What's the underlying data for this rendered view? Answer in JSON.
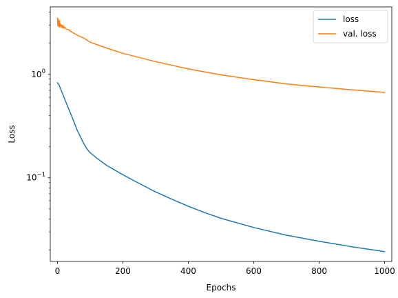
{
  "chart_data": {
    "type": "line",
    "title": "",
    "xlabel": "Epochs",
    "ylabel": "Loss",
    "xlim": [
      -22,
      1022
    ],
    "ylim": [
      0.0155,
      4.5
    ],
    "yscale": "log",
    "grid": false,
    "legend_position": "top-right",
    "x_ticks": [
      0,
      200,
      400,
      600,
      800,
      1000
    ],
    "x_tick_labels": [
      "0",
      "200",
      "400",
      "600",
      "800",
      "1000"
    ],
    "y_major_ticks": [
      0.1,
      1
    ],
    "y_major_tick_labels": [
      "10",
      "10"
    ],
    "y_major_tick_exponents": [
      "−1",
      "0"
    ],
    "y_minor_ticks": [
      0.02,
      0.03,
      0.04,
      0.05,
      0.06,
      0.07,
      0.08,
      0.09,
      0.2,
      0.3,
      0.4,
      0.5,
      0.6,
      0.7,
      0.8,
      0.9,
      2,
      3,
      4
    ],
    "series": [
      {
        "name": "loss",
        "color": "#1f77b4",
        "x": [
          0,
          5,
          10,
          20,
          30,
          40,
          50,
          60,
          70,
          80,
          90,
          100,
          120,
          150,
          200,
          250,
          300,
          350,
          400,
          450,
          500,
          600,
          700,
          800,
          900,
          1000
        ],
        "y": [
          0.83,
          0.79,
          0.72,
          0.6,
          0.5,
          0.42,
          0.35,
          0.29,
          0.25,
          0.215,
          0.19,
          0.175,
          0.155,
          0.132,
          0.107,
          0.088,
          0.073,
          0.062,
          0.053,
          0.046,
          0.0405,
          0.033,
          0.0278,
          0.0243,
          0.0215,
          0.0193
        ]
      },
      {
        "name": "val. loss",
        "color": "#ff7f0e",
        "x": [
          0,
          1,
          2,
          3,
          4,
          5,
          6,
          7,
          8,
          9,
          10,
          12,
          14,
          16,
          18,
          20,
          23,
          26,
          30,
          35,
          40,
          50,
          60,
          80,
          100,
          150,
          200,
          300,
          400,
          500,
          600,
          700,
          800,
          900,
          1000
        ],
        "y": [
          3.5,
          2.95,
          3.45,
          2.9,
          3.2,
          3.0,
          3.3,
          2.88,
          3.1,
          2.95,
          3.05,
          2.85,
          3.0,
          2.82,
          2.95,
          2.8,
          2.85,
          2.75,
          2.72,
          2.7,
          2.62,
          2.5,
          2.4,
          2.25,
          2.05,
          1.8,
          1.6,
          1.33,
          1.13,
          0.99,
          0.89,
          0.81,
          0.755,
          0.71,
          0.67
        ]
      }
    ]
  }
}
